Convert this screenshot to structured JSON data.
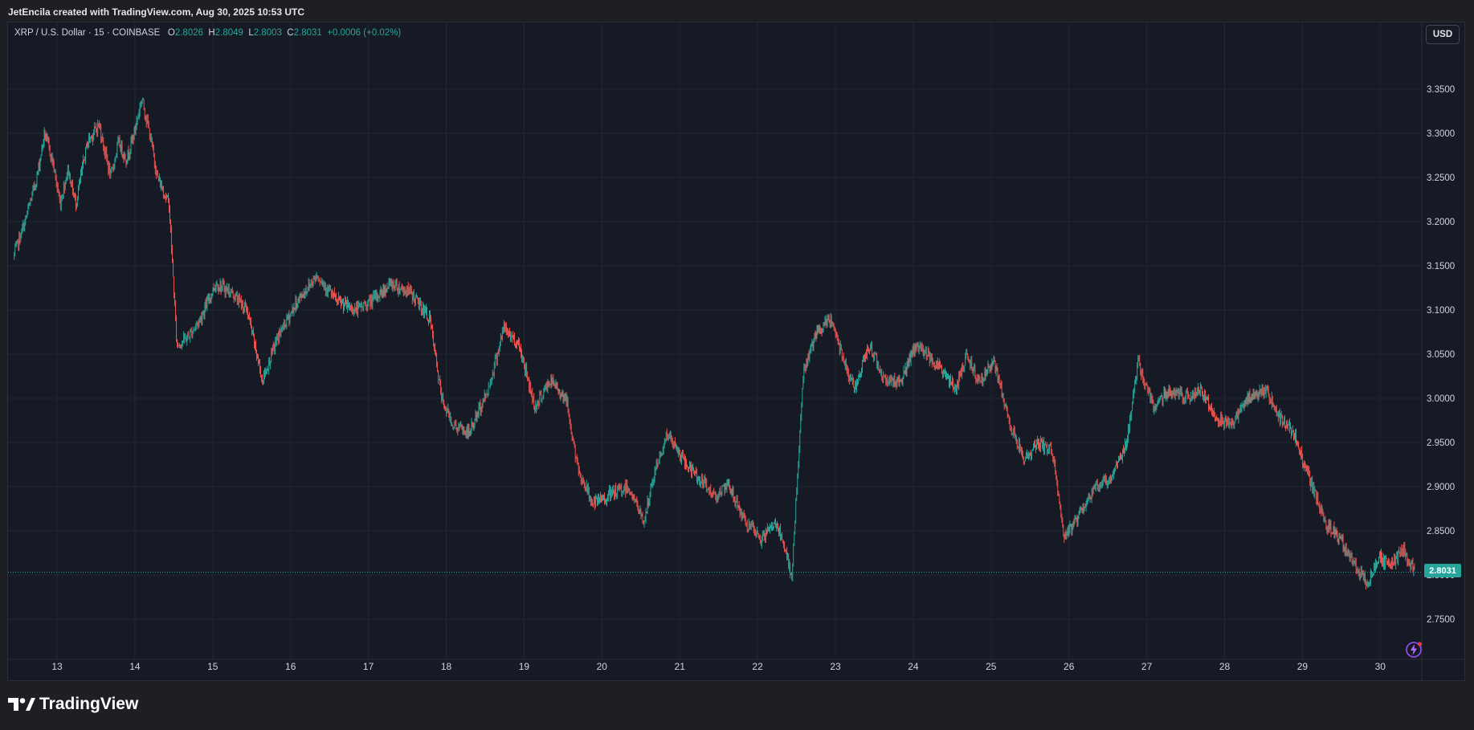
{
  "header": {
    "attribution": "JetEncila created with TradingView.com, Aug 30, 2025 10:53 UTC"
  },
  "legend": {
    "symbol": "XRP / U.S. Dollar · 15 · COINBASE",
    "open_label": "O",
    "open": "2.8026",
    "high_label": "H",
    "high": "2.8049",
    "low_label": "L",
    "low": "2.8003",
    "close_label": "C",
    "close": "2.8031",
    "change": "+0.0006 (+0.02%)"
  },
  "toolbar": {
    "currency_button": "USD"
  },
  "price_badge": "2.8031",
  "footer": {
    "brand": "TradingView"
  },
  "icons": [
    "tradingview-logo-icon",
    "flash-icon"
  ],
  "colors": {
    "up": "#26a69a",
    "down": "#ef5350",
    "background": "#161a25",
    "grid": "#232733",
    "axis_text": "#d1d4dc"
  },
  "chart_data": {
    "type": "candlestick",
    "title": "XRP / U.S. Dollar · 15 · COINBASE",
    "interval": "15",
    "xlabel": "",
    "ylabel": "",
    "ylim": [
      2.72,
      3.39
    ],
    "xlim": [
      12.45,
      30.45
    ],
    "y_ticks": [
      "3.3500",
      "3.3000",
      "3.2500",
      "3.2000",
      "3.1500",
      "3.1000",
      "3.0500",
      "3.0000",
      "2.9500",
      "2.9000",
      "2.8500",
      "2.8000",
      "2.7500"
    ],
    "x_ticks": [
      "13",
      "14",
      "15",
      "16",
      "17",
      "18",
      "19",
      "20",
      "21",
      "22",
      "23",
      "24",
      "25",
      "26",
      "27",
      "28",
      "29",
      "30"
    ],
    "last_price": 2.8031,
    "grid": true,
    "price_path": [
      [
        12.45,
        3.16
      ],
      [
        12.6,
        3.2
      ],
      [
        12.75,
        3.25
      ],
      [
        12.85,
        3.3
      ],
      [
        12.95,
        3.27
      ],
      [
        13.05,
        3.22
      ],
      [
        13.15,
        3.26
      ],
      [
        13.25,
        3.22
      ],
      [
        13.4,
        3.29
      ],
      [
        13.55,
        3.31
      ],
      [
        13.7,
        3.25
      ],
      [
        13.8,
        3.29
      ],
      [
        13.9,
        3.27
      ],
      [
        14.0,
        3.3
      ],
      [
        14.1,
        3.34
      ],
      [
        14.2,
        3.3
      ],
      [
        14.3,
        3.25
      ],
      [
        14.45,
        3.22
      ],
      [
        14.55,
        3.06
      ],
      [
        14.7,
        3.07
      ],
      [
        14.85,
        3.09
      ],
      [
        15.05,
        3.13
      ],
      [
        15.25,
        3.12
      ],
      [
        15.45,
        3.1
      ],
      [
        15.65,
        3.02
      ],
      [
        15.85,
        3.07
      ],
      [
        16.1,
        3.11
      ],
      [
        16.35,
        3.14
      ],
      [
        16.6,
        3.11
      ],
      [
        16.85,
        3.1
      ],
      [
        17.05,
        3.11
      ],
      [
        17.3,
        3.13
      ],
      [
        17.55,
        3.12
      ],
      [
        17.8,
        3.09
      ],
      [
        17.95,
        3.0
      ],
      [
        18.1,
        2.97
      ],
      [
        18.3,
        2.96
      ],
      [
        18.55,
        3.01
      ],
      [
        18.75,
        3.08
      ],
      [
        18.95,
        3.06
      ],
      [
        19.15,
        2.99
      ],
      [
        19.35,
        3.02
      ],
      [
        19.55,
        3.0
      ],
      [
        19.7,
        2.92
      ],
      [
        19.9,
        2.88
      ],
      [
        20.1,
        2.89
      ],
      [
        20.35,
        2.9
      ],
      [
        20.55,
        2.86
      ],
      [
        20.7,
        2.92
      ],
      [
        20.85,
        2.96
      ],
      [
        21.05,
        2.93
      ],
      [
        21.25,
        2.91
      ],
      [
        21.45,
        2.89
      ],
      [
        21.65,
        2.9
      ],
      [
        21.85,
        2.86
      ],
      [
        22.05,
        2.84
      ],
      [
        22.25,
        2.86
      ],
      [
        22.45,
        2.8
      ],
      [
        22.6,
        3.03
      ],
      [
        22.75,
        3.07
      ],
      [
        22.95,
        3.09
      ],
      [
        23.1,
        3.05
      ],
      [
        23.25,
        3.01
      ],
      [
        23.45,
        3.06
      ],
      [
        23.65,
        3.02
      ],
      [
        23.85,
        3.02
      ],
      [
        24.05,
        3.06
      ],
      [
        24.2,
        3.05
      ],
      [
        24.4,
        3.03
      ],
      [
        24.55,
        3.01
      ],
      [
        24.7,
        3.05
      ],
      [
        24.85,
        3.02
      ],
      [
        25.05,
        3.04
      ],
      [
        25.25,
        2.97
      ],
      [
        25.45,
        2.93
      ],
      [
        25.6,
        2.95
      ],
      [
        25.8,
        2.94
      ],
      [
        25.95,
        2.84
      ],
      [
        26.15,
        2.87
      ],
      [
        26.35,
        2.9
      ],
      [
        26.55,
        2.91
      ],
      [
        26.75,
        2.95
      ],
      [
        26.9,
        3.04
      ],
      [
        27.1,
        2.99
      ],
      [
        27.3,
        3.01
      ],
      [
        27.5,
        3.0
      ],
      [
        27.7,
        3.01
      ],
      [
        27.9,
        2.98
      ],
      [
        28.1,
        2.97
      ],
      [
        28.3,
        3.0
      ],
      [
        28.55,
        3.01
      ],
      [
        28.7,
        2.98
      ],
      [
        28.9,
        2.96
      ],
      [
        29.1,
        2.91
      ],
      [
        29.3,
        2.86
      ],
      [
        29.5,
        2.84
      ],
      [
        29.7,
        2.81
      ],
      [
        29.85,
        2.79
      ],
      [
        30.0,
        2.82
      ],
      [
        30.15,
        2.81
      ],
      [
        30.3,
        2.83
      ],
      [
        30.45,
        2.803
      ]
    ]
  }
}
